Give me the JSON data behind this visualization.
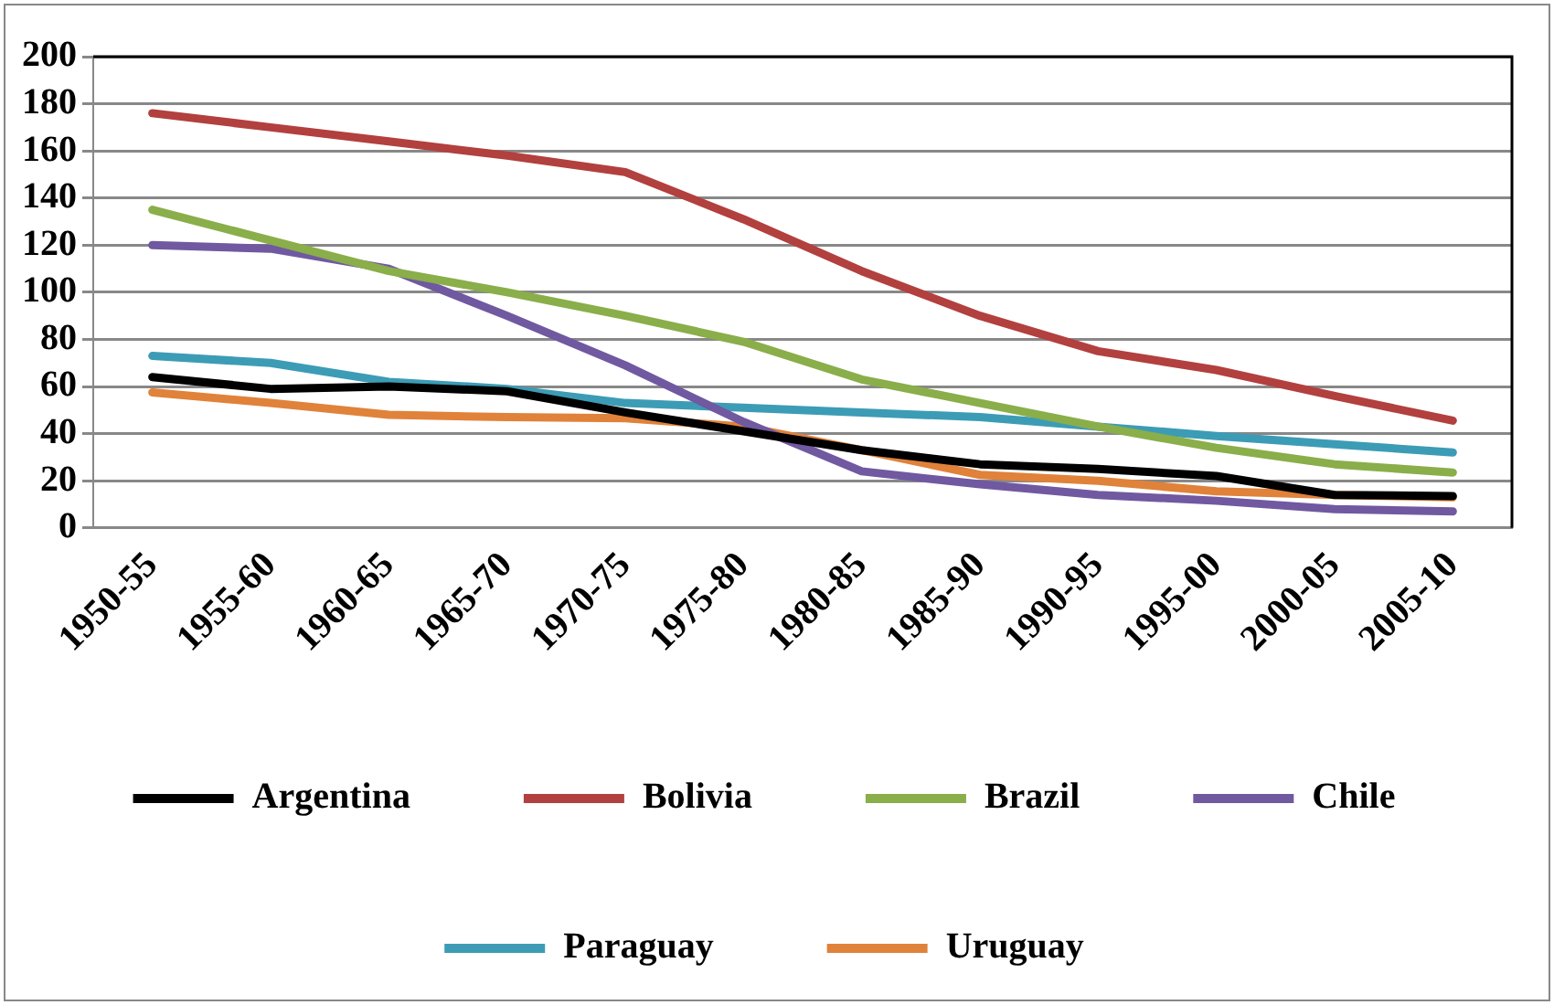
{
  "chart_data": {
    "type": "line",
    "categories": [
      "1950-55",
      "1955-60",
      "1960-65",
      "1965-70",
      "1970-75",
      "1975-80",
      "1980-85",
      "1985-90",
      "1990-95",
      "1995-00",
      "2000-05",
      "2005-10"
    ],
    "series": [
      {
        "name": "Argentina",
        "color": "#000000",
        "values": [
          64,
          59,
          60,
          58,
          49,
          41,
          33,
          27,
          25,
          22,
          14,
          13.5
        ]
      },
      {
        "name": "Bolivia",
        "color": "#b2403e",
        "values": [
          176,
          170,
          164,
          158,
          151,
          131,
          109,
          90,
          75,
          67,
          56,
          45.5
        ]
      },
      {
        "name": "Brazil",
        "color": "#8aae4a",
        "values": [
          135,
          122,
          109,
          100,
          90,
          79,
          63,
          53,
          43,
          34,
          27,
          23.5
        ]
      },
      {
        "name": "Chile",
        "color": "#7059a0",
        "values": [
          120,
          118.5,
          110,
          90,
          69,
          45,
          24,
          18.5,
          14,
          11.5,
          8,
          7
        ]
      },
      {
        "name": "Paraguay",
        "color": "#3c9cb5",
        "values": [
          73,
          70,
          62,
          59,
          53,
          51,
          49,
          47,
          43,
          39,
          35.5,
          32
        ]
      },
      {
        "name": "Uruguay",
        "color": "#e0823a",
        "values": [
          57.5,
          53,
          48,
          47,
          46.5,
          43,
          33,
          22.5,
          20,
          15.5,
          14,
          13
        ]
      }
    ],
    "ylim": [
      0,
      200
    ],
    "yticks": [
      0,
      20,
      40,
      60,
      80,
      100,
      120,
      140,
      160,
      180,
      200
    ],
    "grid": "y",
    "legend": "bottom",
    "marker": "none",
    "line_style": "solid"
  }
}
